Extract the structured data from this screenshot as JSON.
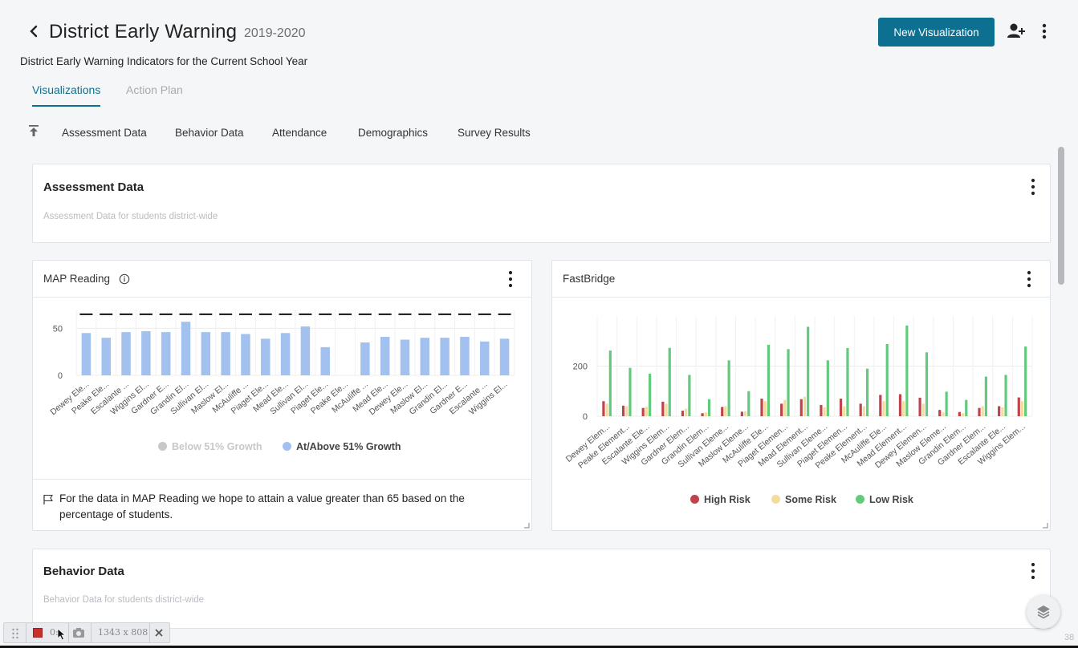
{
  "header": {
    "title": "District Early Warning",
    "year": "2019-2020",
    "subtitle": "District Early Warning Indicators for the Current School Year",
    "new_viz_label": "New Visualization"
  },
  "tabs": [
    {
      "label": "Visualizations",
      "active": true
    },
    {
      "label": "Action Plan",
      "active": false
    }
  ],
  "subnav": [
    "Assessment Data",
    "Behavior Data",
    "Attendance",
    "Demographics",
    "Survey Results"
  ],
  "sections": {
    "assessment": {
      "title": "Assessment Data",
      "description": "Assessment Data for students district-wide"
    },
    "behavior": {
      "title": "Behavior Data",
      "description": "Behavior Data for students district-wide"
    }
  },
  "map_panel": {
    "title": "MAP Reading",
    "goal_text": "For the data in MAP Reading we hope to attain a value greater than 65 based on the percentage of students."
  },
  "fastbridge_panel": {
    "title": "FastBridge"
  },
  "recbar": {
    "time": "0:",
    "size": "1343 x 808"
  },
  "corner_number": "38",
  "colors": {
    "accent": "#0e7090",
    "bar_blue": "#a3c1ef",
    "high": "#c0424c",
    "some": "#f4dc9a",
    "low": "#63c97d",
    "grey": "#c8c8c8"
  },
  "chart_data": [
    {
      "type": "bar",
      "title": "MAP Reading",
      "categories": [
        "Dewey Ele...",
        "Peake Ele...",
        "Escalante ...",
        "Wiggins El...",
        "Gardner E...",
        "Grandin El...",
        "Sullivan El...",
        "Maslow El...",
        "McAuliffe ...",
        "Piaget Ele...",
        "Mead Ele...",
        "Sullivan El...",
        "Piaget Ele...",
        "Peake Ele...",
        "McAuliffe ...",
        "Mead Ele...",
        "Dewey Ele...",
        "Maslow El...",
        "Grandin El...",
        "Gardner E...",
        "Escalante ...",
        "Wiggins El..."
      ],
      "series": [
        {
          "name": "Below 51% Growth",
          "values": [
            0,
            0,
            0,
            0,
            0,
            0,
            0,
            0,
            0,
            0,
            0,
            0,
            0,
            0,
            0,
            0,
            0,
            0,
            0,
            0,
            0,
            0
          ]
        },
        {
          "name": "At/Above 51% Growth",
          "values": [
            45,
            40,
            46,
            47,
            46,
            57,
            46,
            46,
            44,
            39,
            45,
            52,
            30,
            0,
            35,
            41,
            38,
            40,
            40,
            41,
            36,
            39
          ]
        }
      ],
      "target_line": 65,
      "yticks": [
        0,
        50
      ],
      "ylim": [
        0,
        70
      ],
      "legend": "bottom",
      "grid": true
    },
    {
      "type": "bar",
      "title": "FastBridge",
      "categories": [
        "Dewey Elem...",
        "Peake Element...",
        "Escalante Ele...",
        "Wiggins Elem...",
        "Gardner Elem...",
        "Grandin Elem...",
        "Sullivan Eleme...",
        "Maslow Eleme...",
        "McAuliffe Ele...",
        "Piaget Elemen...",
        "Mead Element...",
        "Sullivan Eleme...",
        "Piaget Elemen...",
        "Peake Element...",
        "McAuliffe Ele...",
        "Mead Element...",
        "Dewey Elemen...",
        "Maslow Eleme...",
        "Grandin Elem...",
        "Gardner Elem...",
        "Escalante Ele...",
        "Wiggins Elem..."
      ],
      "series": [
        {
          "name": "High Risk",
          "values": [
            60,
            42,
            33,
            58,
            22,
            12,
            37,
            18,
            70,
            50,
            68,
            45,
            70,
            50,
            85,
            88,
            74,
            25,
            17,
            33,
            40,
            75
          ]
        },
        {
          "name": "Some Risk",
          "values": [
            50,
            40,
            38,
            50,
            30,
            15,
            40,
            20,
            60,
            65,
            78,
            35,
            40,
            40,
            60,
            60,
            50,
            15,
            12,
            40,
            35,
            60
          ]
        },
        {
          "name": "Low Risk",
          "values": [
            262,
            193,
            170,
            273,
            165,
            68,
            223,
            100,
            285,
            268,
            357,
            223,
            272,
            190,
            288,
            362,
            255,
            98,
            65,
            158,
            165,
            278
          ]
        }
      ],
      "yticks": [
        0,
        200
      ],
      "ylim": [
        0,
        400
      ],
      "legend": "bottom",
      "grid": true
    }
  ]
}
